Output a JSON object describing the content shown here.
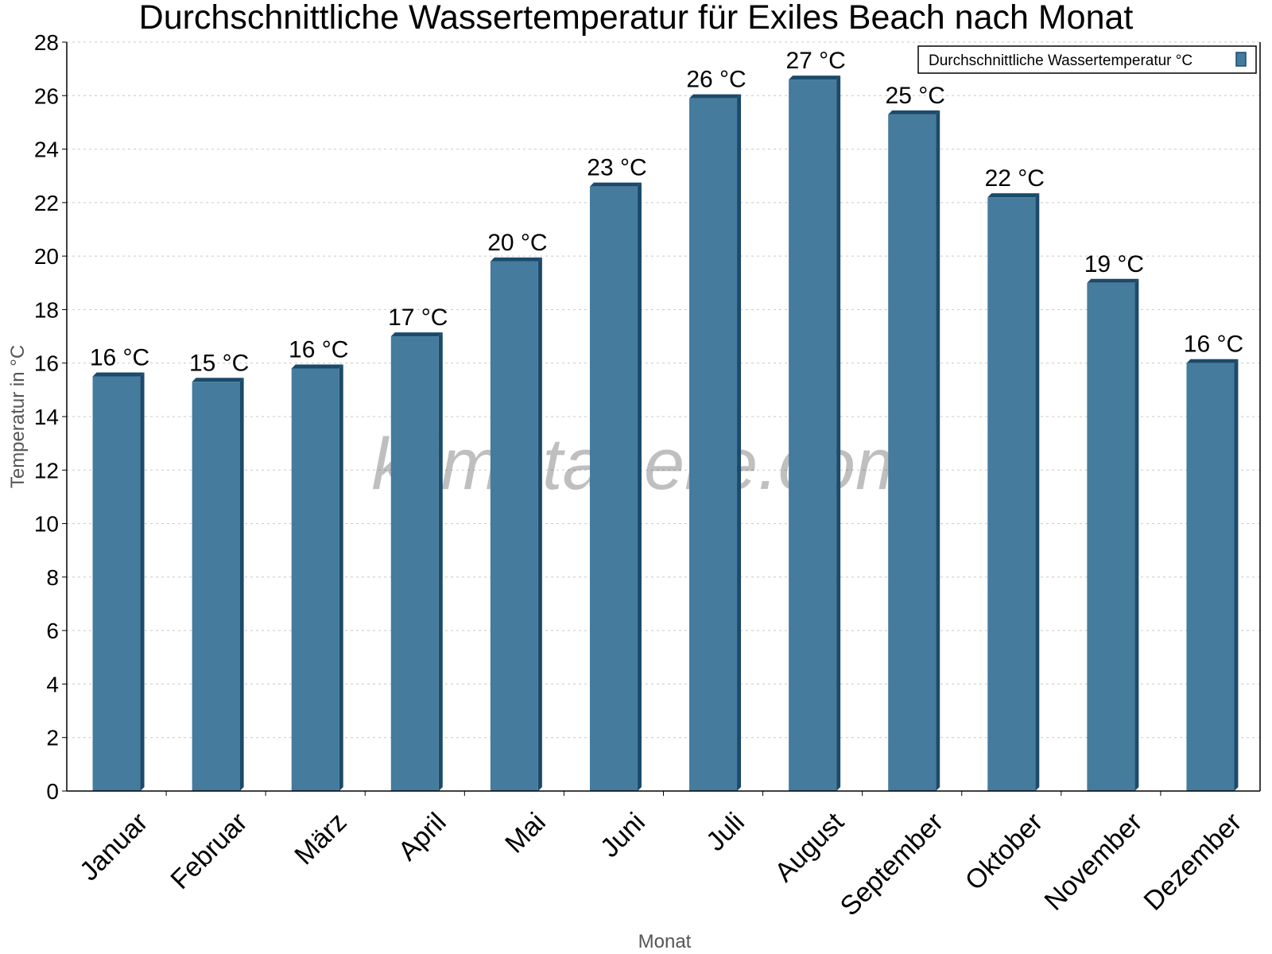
{
  "chart_data": {
    "type": "bar",
    "title": "Durchschnittliche Wassertemperatur für Exiles Beach nach Monat",
    "xlabel": "Monat",
    "ylabel": "Temperatur in °C",
    "ylim": [
      0,
      28
    ],
    "yticks": [
      0,
      2,
      4,
      6,
      8,
      10,
      12,
      14,
      16,
      18,
      20,
      22,
      24,
      26,
      28
    ],
    "grid": true,
    "legend_position": "top-right",
    "categories": [
      "Januar",
      "Februar",
      "März",
      "April",
      "Mai",
      "Juni",
      "Juli",
      "August",
      "September",
      "Oktober",
      "November",
      "Dezember"
    ],
    "series": [
      {
        "name": "Durchschnittliche Wassertemperatur °C",
        "values": [
          15.5,
          15.3,
          15.8,
          17.0,
          19.8,
          22.6,
          25.9,
          26.6,
          25.3,
          22.2,
          19.0,
          16.0
        ],
        "data_labels": [
          "16 °C",
          "15 °C",
          "16 °C",
          "17 °C",
          "20 °C",
          "23 °C",
          "26 °C",
          "27 °C",
          "25 °C",
          "22 °C",
          "19 °C",
          "16 °C"
        ],
        "color": "#457b9d"
      }
    ],
    "watermark": "klimatabelle.com"
  }
}
